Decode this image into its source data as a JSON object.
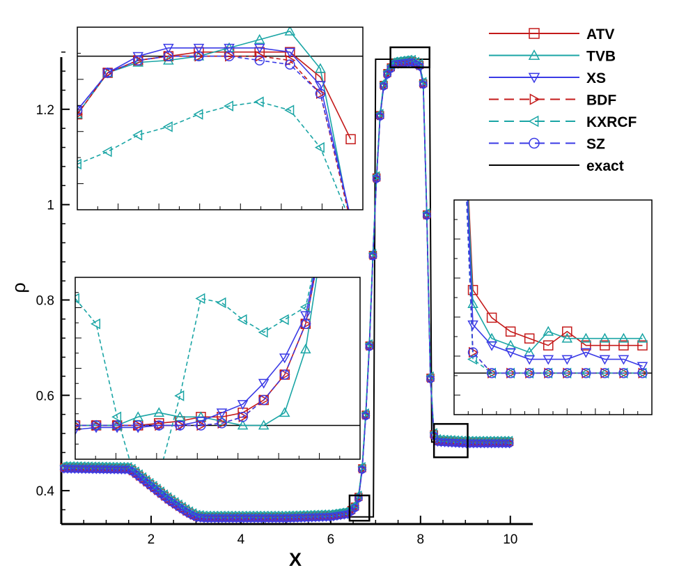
{
  "chart_data": {
    "type": "line",
    "xlabel": "X",
    "ylabel": "ρ",
    "xlim": [
      0,
      10.5
    ],
    "ylim": [
      0.33,
      1.4
    ],
    "x_ticks": [
      2,
      4,
      6,
      8,
      10
    ],
    "x_tick_labels": [
      "2",
      "4",
      "6",
      "8",
      "10"
    ],
    "y_ticks": [
      0.4,
      0.6,
      0.8,
      1.0,
      1.2
    ],
    "y_tick_labels": [
      "0.4",
      "0.6",
      "0.8",
      "1",
      "1.2"
    ],
    "grid": false,
    "legend_position": "top-right",
    "series": [
      {
        "name": "ATV",
        "color": "#c41a1a",
        "dash": "solid",
        "marker": "square"
      },
      {
        "name": "TVB",
        "color": "#1aa5a5",
        "dash": "solid",
        "marker": "triangle-up"
      },
      {
        "name": "XS",
        "color": "#3a3ae6",
        "dash": "solid",
        "marker": "triangle-down"
      },
      {
        "name": "BDF",
        "color": "#c41a1a",
        "dash": "dashed",
        "marker": "triangle-right"
      },
      {
        "name": "KXRCF",
        "color": "#1aa5a5",
        "dash": "dashed",
        "marker": "triangle-left"
      },
      {
        "name": "SZ",
        "color": "#3a3ae6",
        "dash": "dashed",
        "marker": "circle"
      },
      {
        "name": "exact",
        "color": "#000000",
        "dash": "solid",
        "marker": "none"
      }
    ],
    "exact": {
      "x": [
        0,
        1.6,
        3.0,
        6.95,
        7.0,
        8.2,
        8.25,
        10.0
      ],
      "y": [
        0.445,
        0.445,
        0.345,
        0.345,
        1.305,
        1.305,
        0.502,
        0.502
      ]
    },
    "numerical_profile": {
      "x": [
        0,
        1.5,
        1.6,
        2.0,
        2.4,
        2.8,
        3.0,
        3.2,
        5.0,
        6.0,
        6.4,
        6.6,
        6.72,
        6.84,
        6.96,
        7.08,
        7.2,
        7.4,
        7.8,
        8.0,
        8.08,
        8.16,
        8.24,
        8.32,
        8.4,
        8.6,
        9.0,
        10.0
      ],
      "y": [
        0.447,
        0.445,
        0.44,
        0.41,
        0.38,
        0.355,
        0.345,
        0.343,
        0.343,
        0.346,
        0.352,
        0.37,
        0.46,
        0.655,
        0.94,
        1.17,
        1.265,
        1.295,
        1.3,
        1.29,
        1.24,
        0.89,
        0.55,
        0.505,
        0.503,
        0.502,
        0.5,
        0.5
      ]
    },
    "zoom_boxes": [
      {
        "x": [
          6.42,
          6.86
        ],
        "y": [
          0.337,
          0.39
        ]
      },
      {
        "x": [
          7.33,
          8.2
        ],
        "y": [
          1.288,
          1.33
        ]
      },
      {
        "x": [
          8.3,
          9.05
        ],
        "y": [
          0.47,
          0.54
        ]
      }
    ],
    "insets": [
      {
        "region": "top-left",
        "exact_y": 1.35,
        "series": [
          {
            "name": "ATV",
            "x": [
              1,
              2,
              3,
              4,
              5,
              6,
              7,
              8,
              9,
              10
            ],
            "y": [
              1.21,
              1.31,
              1.34,
              1.35,
              1.36,
              1.36,
              1.36,
              1.36,
              1.3,
              1.15
            ]
          },
          {
            "name": "TVB",
            "x": [
              1,
              2,
              3,
              4,
              5,
              6,
              7,
              8,
              9,
              10
            ],
            "y": [
              1.21,
              1.31,
              1.335,
              1.34,
              1.35,
              1.37,
              1.39,
              1.41,
              1.32,
              0.95
            ]
          },
          {
            "name": "XS",
            "x": [
              1,
              2,
              3,
              4,
              5,
              6,
              7,
              8,
              9,
              10
            ],
            "y": [
              1.22,
              1.31,
              1.35,
              1.37,
              1.37,
              1.37,
              1.37,
              1.36,
              1.28,
              0.96
            ]
          },
          {
            "name": "BDF",
            "x": [
              1,
              2,
              3,
              4,
              5,
              6,
              7,
              8,
              9,
              10
            ],
            "y": [
              1.21,
              1.31,
              1.34,
              1.35,
              1.35,
              1.35,
              1.35,
              1.34,
              1.26,
              0.95
            ]
          },
          {
            "name": "KXRCF",
            "x": [
              1,
              2,
              3,
              4,
              5,
              6,
              7,
              8,
              9,
              10
            ],
            "y": [
              1.09,
              1.12,
              1.16,
              1.18,
              1.21,
              1.23,
              1.24,
              1.22,
              1.13,
              0.95
            ]
          },
          {
            "name": "SZ",
            "x": [
              1,
              2,
              3,
              4,
              5,
              6,
              7,
              8,
              9,
              10
            ],
            "y": [
              1.22,
              1.31,
              1.34,
              1.35,
              1.35,
              1.35,
              1.34,
              1.33,
              1.26,
              0.96
            ]
          }
        ]
      },
      {
        "region": "middle-left",
        "exact_y": 0.5,
        "series": [
          {
            "name": "ATV",
            "x": [
              1,
              2,
              3,
              4,
              5,
              6,
              7,
              8,
              9,
              10,
              11,
              12,
              13,
              14
            ],
            "y": [
              0.5,
              0.5,
              0.5,
              0.5,
              0.505,
              0.51,
              0.52,
              0.52,
              0.53,
              0.56,
              0.62,
              0.74,
              1.0,
              1.2
            ]
          },
          {
            "name": "TVB",
            "x": [
              1,
              2,
              3,
              4,
              5,
              6,
              7,
              8,
              9,
              10,
              11,
              12,
              13,
              14
            ],
            "y": [
              0.5,
              0.5,
              0.5,
              0.52,
              0.53,
              0.52,
              0.52,
              0.51,
              0.5,
              0.5,
              0.53,
              0.68,
              1.0,
              1.2
            ]
          },
          {
            "name": "XS",
            "x": [
              1,
              2,
              3,
              4,
              5,
              6,
              7,
              8,
              9,
              10,
              11,
              12,
              13,
              14
            ],
            "y": [
              0.49,
              0.495,
              0.495,
              0.495,
              0.5,
              0.5,
              0.51,
              0.53,
              0.55,
              0.6,
              0.66,
              0.76,
              1.0,
              1.2
            ]
          },
          {
            "name": "BDF",
            "x": [
              1,
              2,
              3,
              4,
              5,
              6,
              7,
              8,
              9,
              10,
              11,
              12,
              13,
              14
            ],
            "y": [
              0.5,
              0.5,
              0.5,
              0.5,
              0.5,
              0.5,
              0.5,
              0.505,
              0.52,
              0.56,
              0.62,
              0.74,
              1.0,
              1.2
            ]
          },
          {
            "name": "KXRCF",
            "x": [
              1,
              2,
              3,
              4,
              5,
              6,
              7,
              8,
              9,
              10,
              11,
              12,
              13,
              14
            ],
            "y": [
              0.8,
              0.74,
              0.52,
              0.35,
              0.38,
              0.57,
              0.8,
              0.79,
              0.75,
              0.72,
              0.75,
              0.78,
              1.0,
              1.2
            ]
          },
          {
            "name": "SZ",
            "x": [
              1,
              2,
              3,
              4,
              5,
              6,
              7,
              8,
              9,
              10,
              11,
              12,
              13,
              14
            ],
            "y": [
              0.5,
              0.5,
              0.5,
              0.5,
              0.5,
              0.5,
              0.5,
              0.505,
              0.52,
              0.56,
              0.62,
              0.74,
              1.0,
              1.2
            ]
          }
        ]
      },
      {
        "region": "right",
        "exact_y": 0.5,
        "series": [
          {
            "name": "ATV",
            "x": [
              1,
              2,
              3,
              4,
              5,
              6,
              7,
              8,
              9,
              10,
              11
            ],
            "y": [
              1.2,
              0.62,
              0.58,
              0.56,
              0.55,
              0.54,
              0.56,
              0.54,
              0.54,
              0.54,
              0.54
            ]
          },
          {
            "name": "TVB",
            "x": [
              1,
              2,
              3,
              4,
              5,
              6,
              7,
              8,
              9,
              10,
              11
            ],
            "y": [
              1.2,
              0.6,
              0.55,
              0.54,
              0.53,
              0.56,
              0.55,
              0.55,
              0.55,
              0.55,
              0.55
            ]
          },
          {
            "name": "XS",
            "x": [
              1,
              2,
              3,
              4,
              5,
              6,
              7,
              8,
              9,
              10,
              11
            ],
            "y": [
              1.2,
              0.57,
              0.54,
              0.53,
              0.52,
              0.52,
              0.52,
              0.53,
              0.52,
              0.52,
              0.51
            ]
          },
          {
            "name": "BDF",
            "x": [
              1,
              2,
              3,
              4,
              5,
              6,
              7,
              8,
              9,
              10,
              11
            ],
            "y": [
              1.2,
              0.53,
              0.5,
              0.5,
              0.5,
              0.5,
              0.5,
              0.5,
              0.5,
              0.5,
              0.5
            ]
          },
          {
            "name": "KXRCF",
            "x": [
              1,
              2,
              3,
              4,
              5,
              6,
              7,
              8,
              9,
              10,
              11
            ],
            "y": [
              1.2,
              0.52,
              0.5,
              0.5,
              0.5,
              0.5,
              0.5,
              0.5,
              0.5,
              0.5,
              0.5
            ]
          },
          {
            "name": "SZ",
            "x": [
              1,
              2,
              3,
              4,
              5,
              6,
              7,
              8,
              9,
              10,
              11
            ],
            "y": [
              1.2,
              0.53,
              0.5,
              0.5,
              0.5,
              0.5,
              0.5,
              0.5,
              0.5,
              0.5,
              0.5
            ]
          }
        ]
      }
    ]
  }
}
